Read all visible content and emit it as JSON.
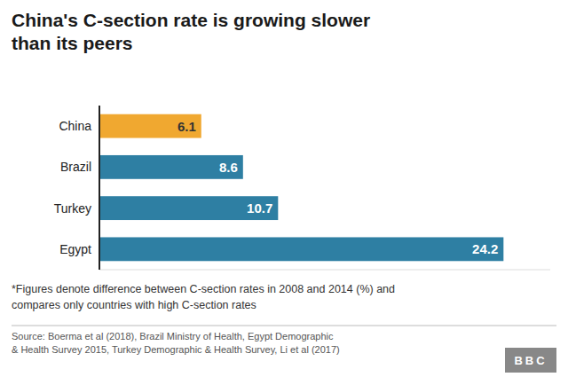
{
  "chart_data": {
    "type": "bar",
    "orientation": "horizontal",
    "title": "China's C-section rate is growing slower\nthan its peers",
    "categories": [
      "Egypt",
      "Turkey",
      "Brazil",
      "China"
    ],
    "values": [
      24.2,
      10.7,
      8.6,
      6.1
    ],
    "colors": [
      "#2e7fa3",
      "#2e7fa3",
      "#2e7fa3",
      "#f0a830"
    ],
    "xlim": [
      0,
      27
    ],
    "data_labels": true,
    "tick_labels": "y",
    "grid": false,
    "annotations": [
      "*Figures denote difference between C-section rates in 2008 and 2014 (%) and\ncompares only countries with high C-section rates",
      "Source: Boerma et al (2018), Brazil Ministry of Health, Egypt Demographic\n& Health Survey 2015, Turkey Demographic & Health Survey, Li et al (2017)",
      "BBC"
    ]
  }
}
